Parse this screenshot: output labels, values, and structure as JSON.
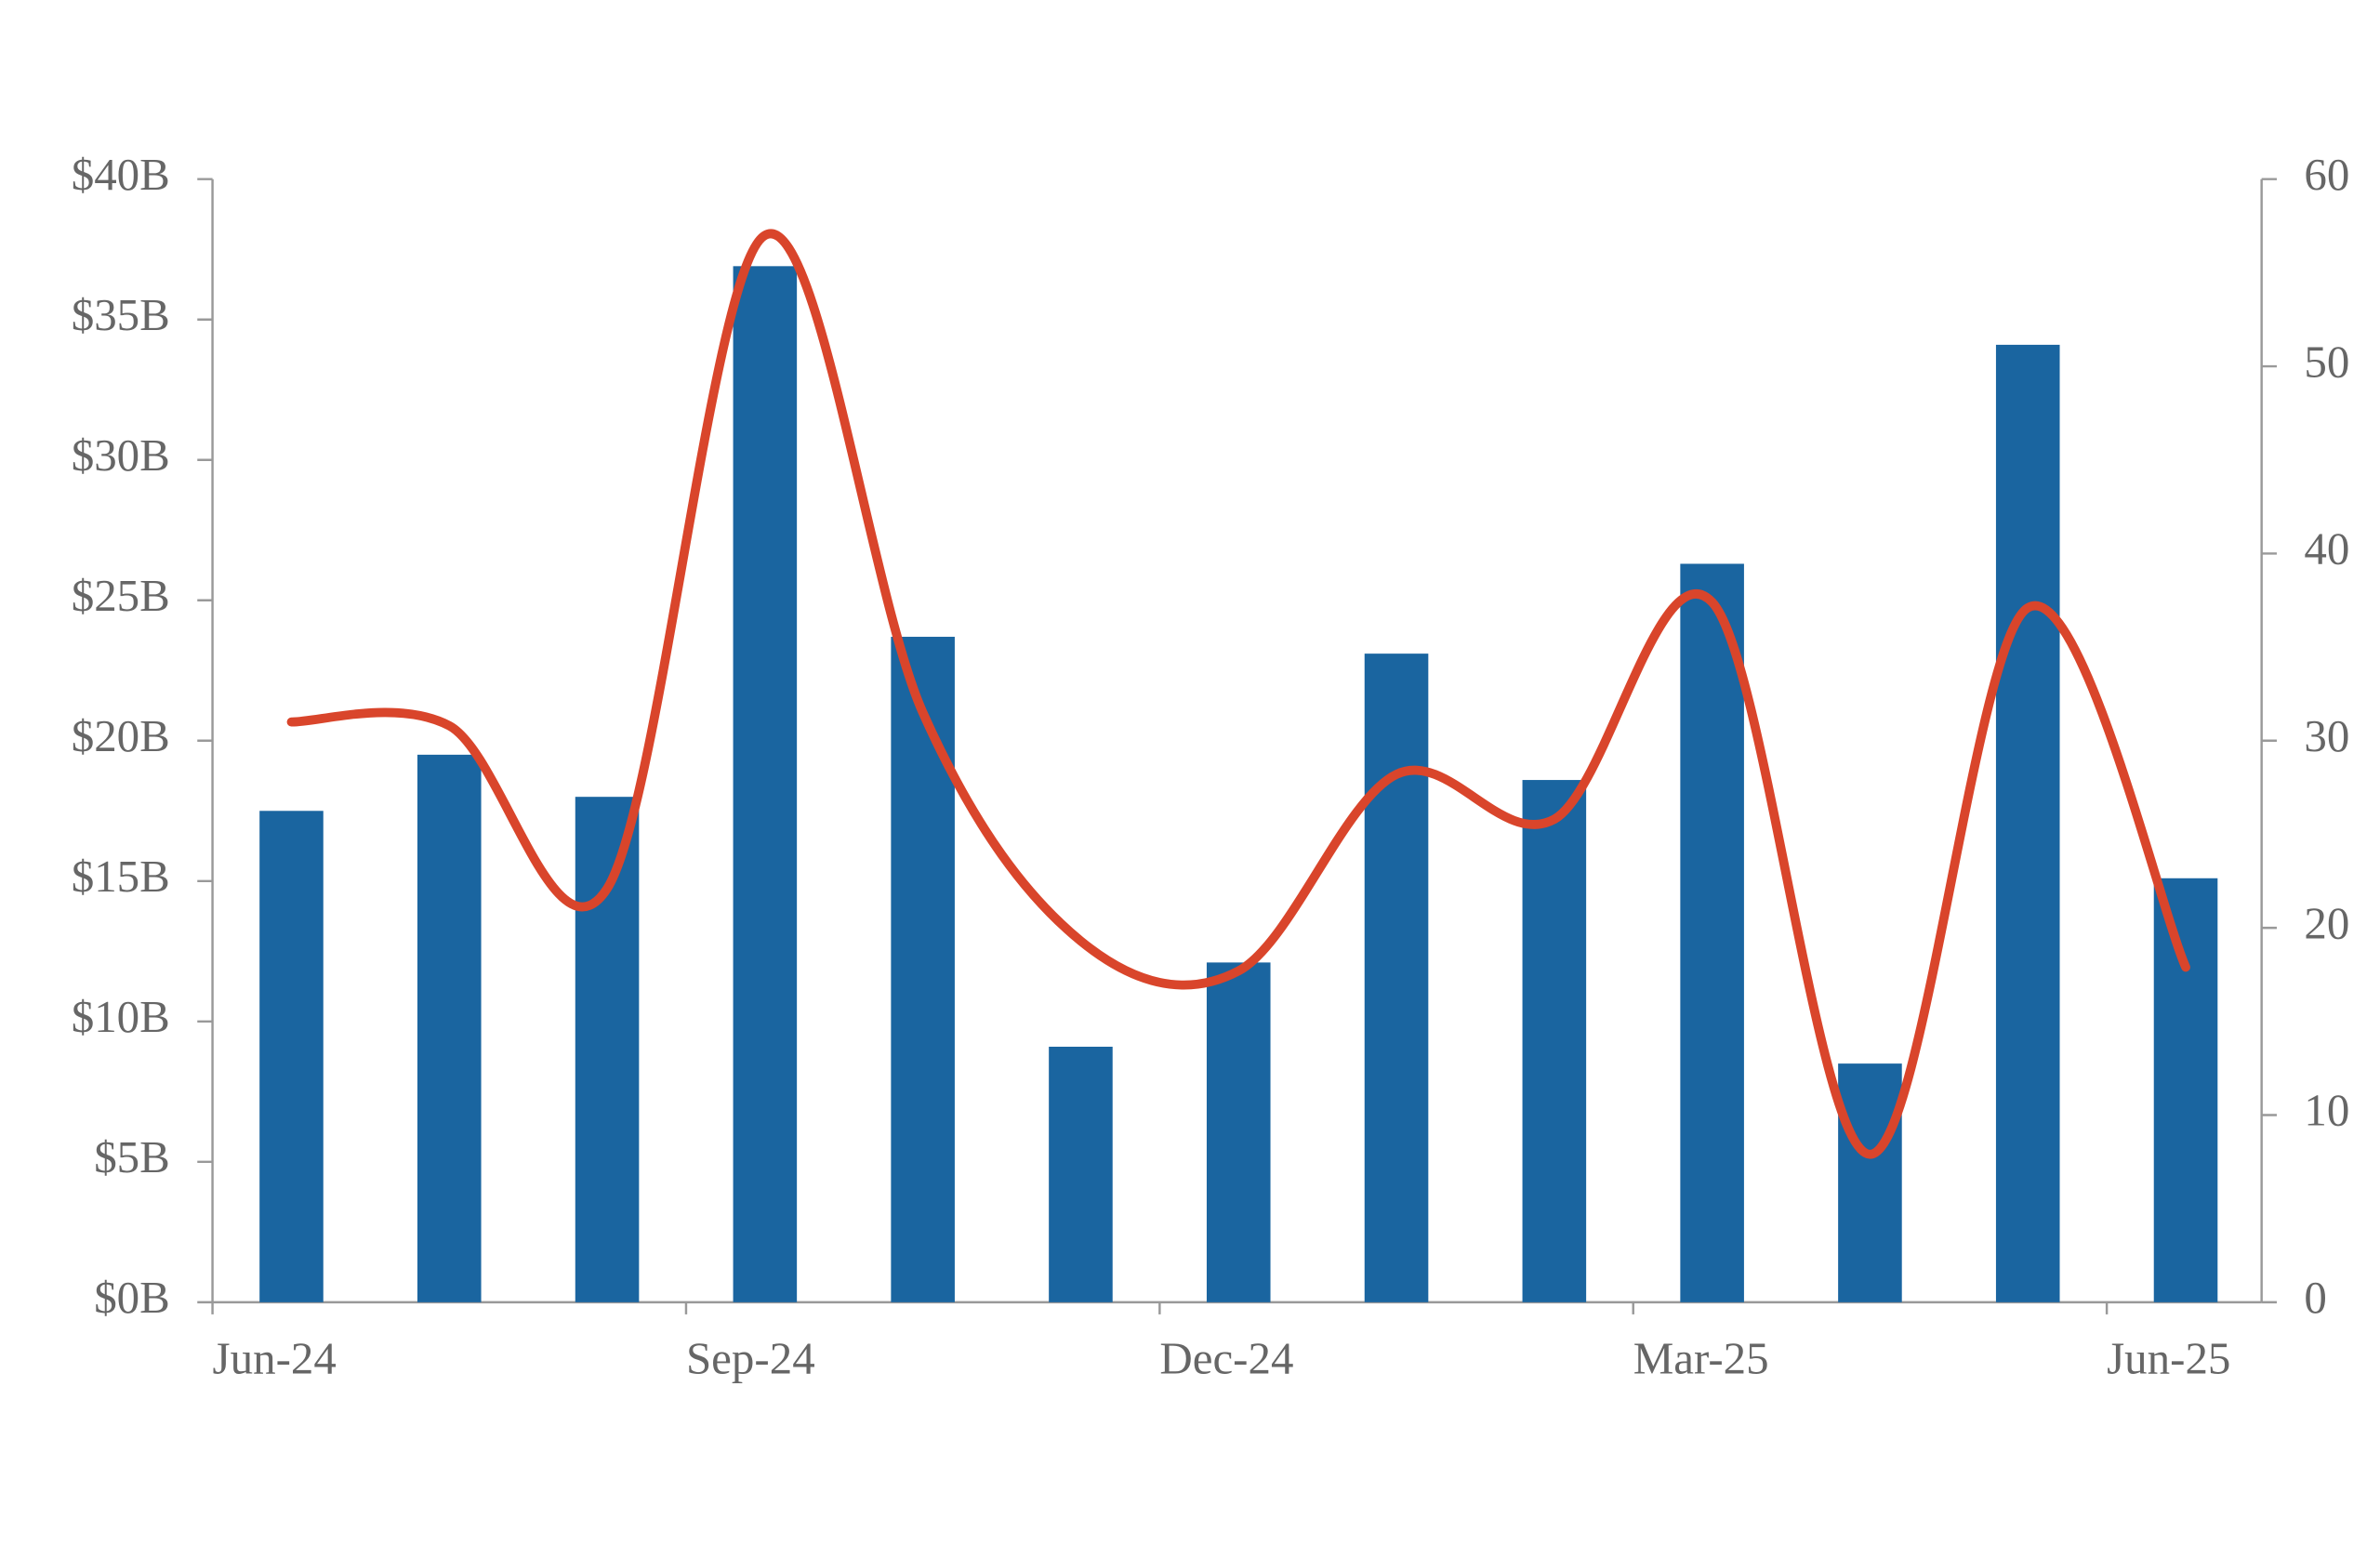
{
  "chart_data": {
    "type": "bar-line",
    "categories": [
      "Jun-24",
      null,
      null,
      "Sep-24",
      null,
      null,
      "Dec-24",
      null,
      null,
      "Mar-25",
      null,
      null,
      "Jun-25"
    ],
    "series": [
      {
        "type": "bar",
        "color": "#1a65a0",
        "values": [
          17.5,
          19.5,
          18.0,
          36.9,
          23.7,
          9.1,
          12.1,
          23.1,
          18.6,
          26.3,
          8.5,
          34.1,
          15.1
        ]
      },
      {
        "type": "line",
        "axis": "y2",
        "color": "#d9452b",
        "values": [
          31.0,
          30.8,
          22.1,
          57.0,
          31.5,
          19.3,
          17.7,
          28.2,
          25.8,
          37.4,
          7.9,
          37.1,
          17.9
        ]
      }
    ],
    "ylim": [
      0,
      40
    ],
    "yticks": [
      {
        "value": 0,
        "label": "$0B"
      },
      {
        "value": 5,
        "label": "$5B"
      },
      {
        "value": 10,
        "label": "$10B"
      },
      {
        "value": 15,
        "label": "$15B"
      },
      {
        "value": 20,
        "label": "$20B"
      },
      {
        "value": 25,
        "label": "$25B"
      },
      {
        "value": 30,
        "label": "$30B"
      },
      {
        "value": 35,
        "label": "$35B"
      },
      {
        "value": 40,
        "label": "$40B"
      }
    ],
    "y2lim": [
      0,
      60
    ],
    "y2ticks": [
      0,
      10,
      20,
      30,
      40,
      50,
      60
    ],
    "grid": false
  }
}
